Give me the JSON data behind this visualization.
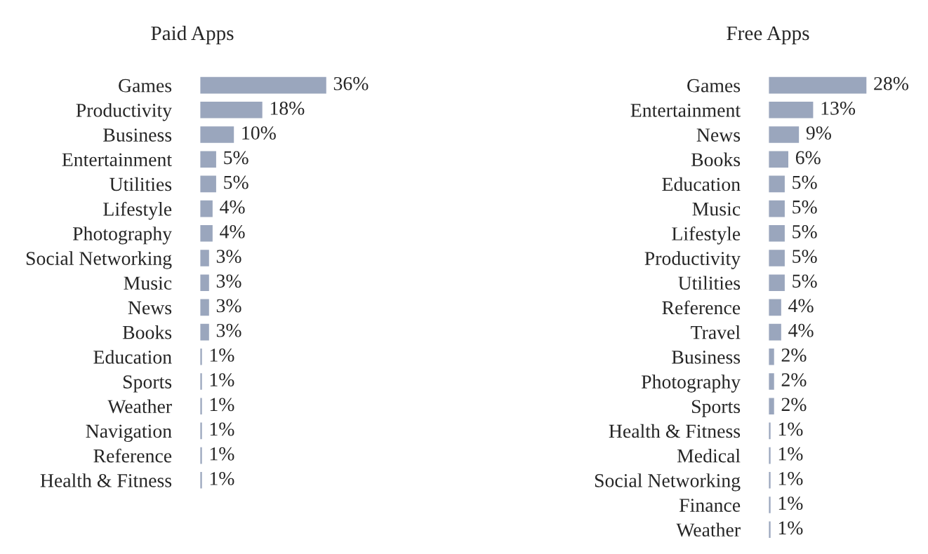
{
  "chart_data": [
    {
      "type": "bar",
      "orientation": "horizontal",
      "title": "Paid Apps",
      "tick_labels": "y",
      "color": "#9aa6bd",
      "categories": [
        "Games",
        "Productivity",
        "Business",
        "Entertainment",
        "Utilities",
        "Lifestyle",
        "Photography",
        "Social Networking",
        "Music",
        "News",
        "Books",
        "Education",
        "Sports",
        "Weather",
        "Navigation",
        "Reference",
        "Health & Fitness"
      ],
      "values": [
        36,
        18,
        10,
        5,
        5,
        4,
        4,
        3,
        3,
        3,
        3,
        1,
        1,
        1,
        1,
        1,
        1
      ],
      "value_labels": [
        "36%",
        "18%",
        "10%",
        "5%",
        "5%",
        "4%",
        "4%",
        "3%",
        "3%",
        "3%",
        "3%",
        "1%",
        "1%",
        "1%",
        "1%",
        "1%",
        "1%"
      ]
    },
    {
      "type": "bar",
      "orientation": "horizontal",
      "title": "Free Apps",
      "tick_labels": "y",
      "color": "#9aa6bd",
      "categories": [
        "Games",
        "Entertainment",
        "News",
        "Books",
        "Education",
        "Music",
        "Lifestyle",
        "Productivity",
        "Utilities",
        "Reference",
        "Travel",
        "Business",
        "Photography",
        "Sports",
        "Health & Fitness",
        "Medical",
        "Social Networking",
        "Finance",
        "Weather"
      ],
      "values": [
        28,
        13,
        9,
        6,
        5,
        5,
        5,
        5,
        5,
        4,
        4,
        2,
        2,
        2,
        1,
        1,
        1,
        1,
        1
      ],
      "value_labels": [
        "28%",
        "13%",
        "9%",
        "6%",
        "5%",
        "5%",
        "5%",
        "5%",
        "5%",
        "4%",
        "4%",
        "2%",
        "2%",
        "2%",
        "1%",
        "1%",
        "1%",
        "1%",
        "1%"
      ]
    }
  ]
}
